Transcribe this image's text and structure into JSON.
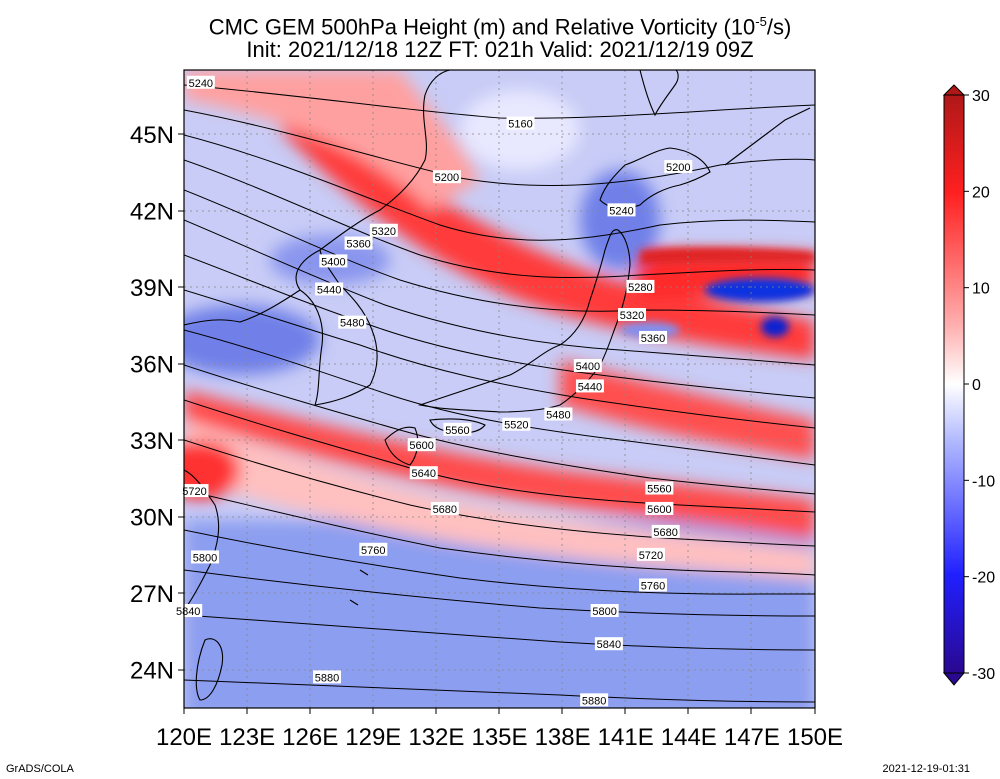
{
  "title": {
    "line1_prefix": "CMC GEM 500hPa Height (m) and Relative Vorticity (10",
    "line1_sup": "-5",
    "line1_suffix": "/s)",
    "line2": "Init: 2021/12/18 12Z  FT: 021h  Valid: 2021/12/19 09Z"
  },
  "map": {
    "lon_range": [
      120,
      150
    ],
    "lat_range": [
      22.5,
      47.5
    ],
    "lon_ticks": [
      "120E",
      "123E",
      "126E",
      "129E",
      "132E",
      "135E",
      "138E",
      "141E",
      "144E",
      "147E",
      "150E"
    ],
    "lat_ticks": [
      "24N",
      "27N",
      "30N",
      "33N",
      "36N",
      "39N",
      "42N",
      "45N"
    ],
    "contour_labels": [
      {
        "text": "5240",
        "lon": 120.8,
        "lat": 47.0
      },
      {
        "text": "5160",
        "lon": 136.0,
        "lat": 45.4
      },
      {
        "text": "5200",
        "lon": 132.5,
        "lat": 43.3
      },
      {
        "text": "5200",
        "lon": 143.5,
        "lat": 43.7
      },
      {
        "text": "5240",
        "lon": 140.8,
        "lat": 42.0
      },
      {
        "text": "5320",
        "lon": 129.5,
        "lat": 41.2
      },
      {
        "text": "5360",
        "lon": 128.3,
        "lat": 40.7
      },
      {
        "text": "5400",
        "lon": 127.1,
        "lat": 40.0
      },
      {
        "text": "5280",
        "lon": 141.7,
        "lat": 39.0
      },
      {
        "text": "5440",
        "lon": 126.9,
        "lat": 38.9
      },
      {
        "text": "5320",
        "lon": 141.3,
        "lat": 37.9
      },
      {
        "text": "5480",
        "lon": 128.0,
        "lat": 37.6
      },
      {
        "text": "5360",
        "lon": 142.3,
        "lat": 37.0
      },
      {
        "text": "5400",
        "lon": 139.2,
        "lat": 35.9
      },
      {
        "text": "5440",
        "lon": 139.3,
        "lat": 35.1
      },
      {
        "text": "5480",
        "lon": 137.8,
        "lat": 34.0
      },
      {
        "text": "5520",
        "lon": 135.8,
        "lat": 33.6
      },
      {
        "text": "5560",
        "lon": 133.0,
        "lat": 33.4
      },
      {
        "text": "5600",
        "lon": 131.3,
        "lat": 32.8
      },
      {
        "text": "5640",
        "lon": 131.4,
        "lat": 31.7
      },
      {
        "text": "5720",
        "lon": 120.5,
        "lat": 31.0
      },
      {
        "text": "5560",
        "lon": 142.6,
        "lat": 31.1
      },
      {
        "text": "5680",
        "lon": 132.4,
        "lat": 30.3
      },
      {
        "text": "5600",
        "lon": 142.6,
        "lat": 30.3
      },
      {
        "text": "5680",
        "lon": 142.9,
        "lat": 29.4
      },
      {
        "text": "5720",
        "lon": 142.2,
        "lat": 28.5
      },
      {
        "text": "5760",
        "lon": 129.0,
        "lat": 28.7
      },
      {
        "text": "5800",
        "lon": 121.0,
        "lat": 28.4
      },
      {
        "text": "5760",
        "lon": 142.3,
        "lat": 27.3
      },
      {
        "text": "5800",
        "lon": 140.0,
        "lat": 26.3
      },
      {
        "text": "5840",
        "lon": 120.2,
        "lat": 26.3
      },
      {
        "text": "5840",
        "lon": 140.2,
        "lat": 25.0
      },
      {
        "text": "5880",
        "lon": 126.8,
        "lat": 23.7
      },
      {
        "text": "5880",
        "lon": 139.5,
        "lat": 22.8
      }
    ]
  },
  "colorbar": {
    "ticks": [
      "30",
      "20",
      "10",
      "0",
      "-10",
      "-20",
      "-30"
    ],
    "colors": {
      "max": "#b01818",
      "red": "#ff2020",
      "light_red": "#ffb0b0",
      "zero": "#ffffff",
      "light_blue": "#b0b8ff",
      "blue": "#2020ff",
      "min": "#2a0890"
    }
  },
  "footer": {
    "left": "GrADS/COLA",
    "right": "2021-12-19-01:31"
  }
}
